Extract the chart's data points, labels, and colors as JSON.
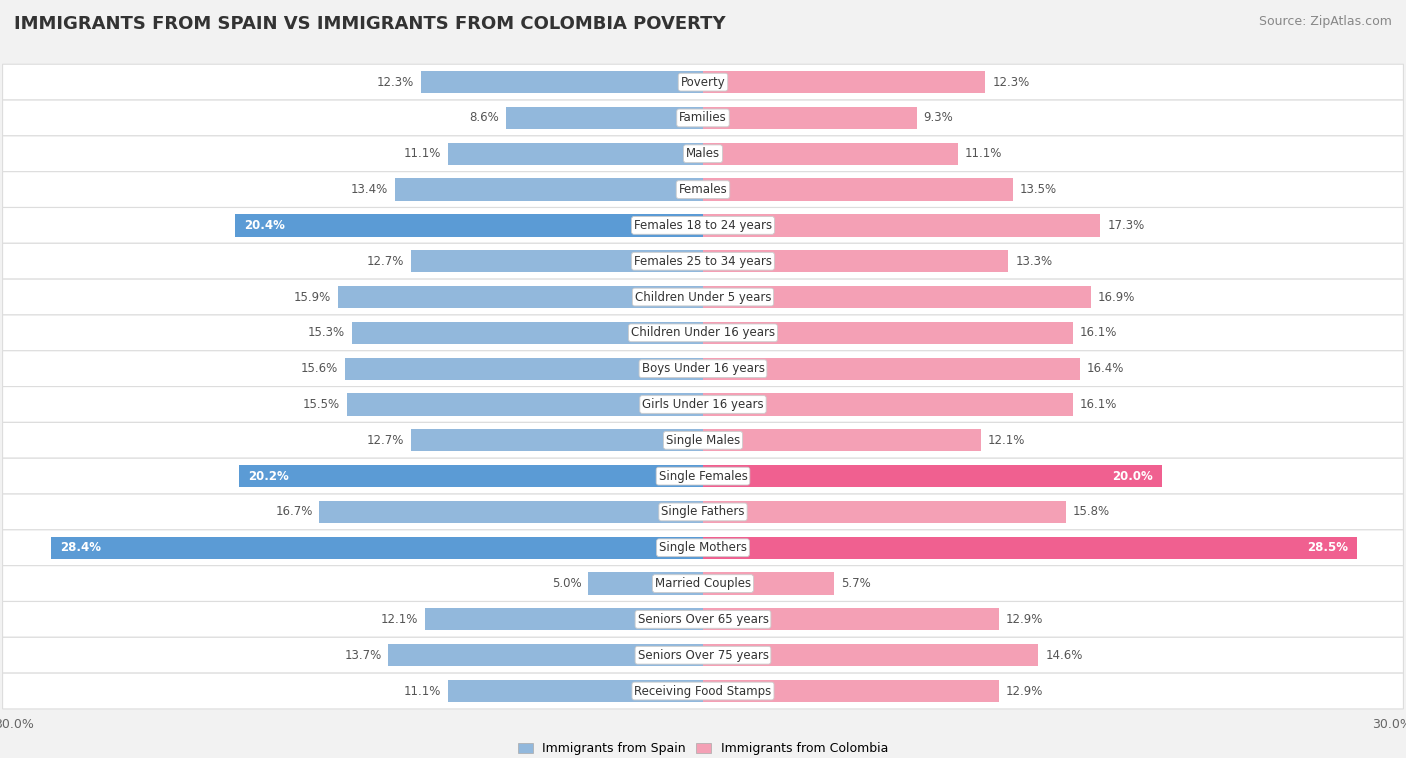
{
  "title": "IMMIGRANTS FROM SPAIN VS IMMIGRANTS FROM COLOMBIA POVERTY",
  "source": "Source: ZipAtlas.com",
  "categories": [
    "Poverty",
    "Families",
    "Males",
    "Females",
    "Females 18 to 24 years",
    "Females 25 to 34 years",
    "Children Under 5 years",
    "Children Under 16 years",
    "Boys Under 16 years",
    "Girls Under 16 years",
    "Single Males",
    "Single Females",
    "Single Fathers",
    "Single Mothers",
    "Married Couples",
    "Seniors Over 65 years",
    "Seniors Over 75 years",
    "Receiving Food Stamps"
  ],
  "spain_values": [
    12.3,
    8.6,
    11.1,
    13.4,
    20.4,
    12.7,
    15.9,
    15.3,
    15.6,
    15.5,
    12.7,
    20.2,
    16.7,
    28.4,
    5.0,
    12.1,
    13.7,
    11.1
  ],
  "colombia_values": [
    12.3,
    9.3,
    11.1,
    13.5,
    17.3,
    13.3,
    16.9,
    16.1,
    16.4,
    16.1,
    12.1,
    20.0,
    15.8,
    28.5,
    5.7,
    12.9,
    14.6,
    12.9
  ],
  "spain_color": "#92b8dc",
  "colombia_color": "#f4a0b5",
  "spain_color_highlight": "#5b9bd5",
  "colombia_color_highlight": "#f06090",
  "spain_label": "Immigrants from Spain",
  "colombia_label": "Immigrants from Colombia",
  "axis_limit": 30.0,
  "bar_height": 0.62,
  "background_color": "#f2f2f2",
  "row_bg_color": "#ffffff",
  "title_fontsize": 13,
  "source_fontsize": 9,
  "label_fontsize": 8.5,
  "value_fontsize": 8.5,
  "highlight_threshold": 18.0
}
